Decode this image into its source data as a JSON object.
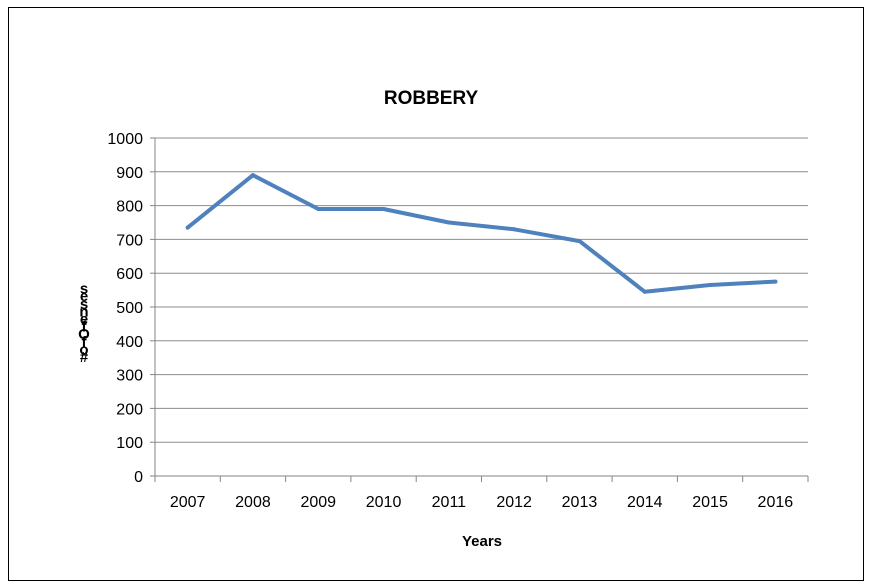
{
  "chart_data": {
    "type": "line",
    "title": "ROBBERY",
    "xlabel": "Years",
    "ylabel": "# of Offenses",
    "ylabel_rendered": "# o f O f e n s e s",
    "categories": [
      "2007",
      "2008",
      "2009",
      "2010",
      "2011",
      "2012",
      "2013",
      "2014",
      "2015",
      "2016"
    ],
    "series": [
      {
        "values": [
          735,
          890,
          790,
          790,
          750,
          730,
          695,
          545,
          565,
          575
        ]
      }
    ],
    "ylim": [
      0,
      1000
    ],
    "yticks": [
      0,
      100,
      200,
      300,
      400,
      500,
      600,
      700,
      800,
      900,
      1000
    ],
    "grid": true,
    "legend": "none",
    "line_color": "#4f81bd"
  }
}
